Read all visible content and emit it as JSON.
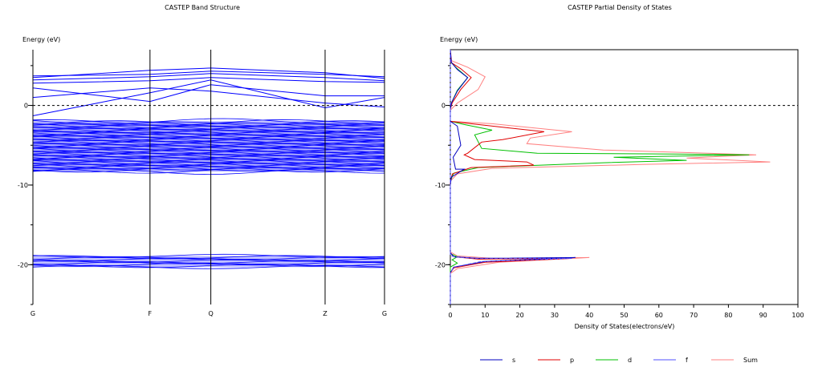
{
  "chart_data": [
    {
      "type": "line",
      "title": "CASTEP Band Structure",
      "ylabel": "Energy (eV)",
      "xlabel": "",
      "ylim": [
        -25,
        7
      ],
      "yticks": [
        0,
        -10,
        -20
      ],
      "kpoints": [
        {
          "label": "G",
          "pos": 0.0
        },
        {
          "label": "F",
          "pos": 0.333
        },
        {
          "label": "Q",
          "pos": 0.506
        },
        {
          "label": "Z",
          "pos": 0.831
        },
        {
          "label": "G",
          "pos": 1.0
        }
      ],
      "fermi_level": 0,
      "line_color": "#0000ff",
      "dense_blocks": [
        {
          "from": -8.3,
          "to": -2.0
        },
        {
          "from": -20.3,
          "to": -18.9
        }
      ],
      "bands": [
        {
          "x": [
            0,
            0.333,
            0.506,
            0.831,
            1.0
          ],
          "y": [
            -1.3,
            1.6,
            3.2,
            -0.3,
            1.0
          ]
        },
        {
          "x": [
            0,
            0.333,
            0.506,
            0.831,
            1.0
          ],
          "y": [
            1.0,
            2.2,
            1.8,
            0.3,
            -0.2
          ]
        },
        {
          "x": [
            0,
            0.333,
            0.506,
            0.831,
            1.0
          ],
          "y": [
            2.2,
            0.5,
            2.6,
            1.2,
            1.2
          ]
        },
        {
          "x": [
            0,
            0.333,
            0.506,
            0.831,
            1.0
          ],
          "y": [
            2.8,
            3.1,
            3.5,
            3.0,
            2.9
          ]
        },
        {
          "x": [
            0,
            0.333,
            0.506,
            0.831,
            1.0
          ],
          "y": [
            3.2,
            3.6,
            4.0,
            3.5,
            3.1
          ]
        },
        {
          "x": [
            0,
            0.333,
            0.506,
            0.831,
            1.0
          ],
          "y": [
            3.5,
            4.4,
            4.7,
            4.1,
            3.4
          ]
        },
        {
          "x": [
            0,
            0.333,
            0.506,
            0.831,
            1.0
          ],
          "y": [
            3.7,
            3.9,
            4.3,
            3.9,
            3.6
          ]
        }
      ]
    },
    {
      "type": "line",
      "title": "CASTEP Partial  Density of States",
      "ylabel": "Energy (eV)",
      "xlabel": "Density of States(electrons/eV)",
      "xlim": [
        0,
        100
      ],
      "ylim": [
        -25,
        7
      ],
      "xticks": [
        0,
        10,
        20,
        30,
        40,
        50,
        60,
        70,
        80,
        90,
        100
      ],
      "yticks": [
        0,
        -10,
        -20
      ],
      "fermi_level": 0,
      "series": [
        {
          "name": "s",
          "color": "#0000c0",
          "points": [
            [
              0,
              7
            ],
            [
              0.3,
              5.4
            ],
            [
              2,
              4.5
            ],
            [
              5,
              3.5
            ],
            [
              2,
              1.8
            ],
            [
              0.3,
              0.3
            ],
            [
              0,
              -0.5
            ],
            [
              0,
              -2.0
            ],
            [
              2,
              -2.6
            ],
            [
              3,
              -5.0
            ],
            [
              0.8,
              -6.5
            ],
            [
              1.5,
              -8
            ],
            [
              4,
              -8.0
            ],
            [
              0.3,
              -9.0
            ],
            [
              0,
              -10
            ],
            [
              0,
              -18.5
            ],
            [
              1,
              -19.0
            ],
            [
              8,
              -19.2
            ],
            [
              36,
              -19.1
            ],
            [
              10,
              -19.6
            ],
            [
              1,
              -20.3
            ],
            [
              0,
              -21.0
            ],
            [
              0,
              -25
            ]
          ]
        },
        {
          "name": "p",
          "color": "#e00000",
          "points": [
            [
              0,
              7
            ],
            [
              0.2,
              5.4
            ],
            [
              3,
              4.6
            ],
            [
              6,
              3.5
            ],
            [
              3,
              2.0
            ],
            [
              0.5,
              0.3
            ],
            [
              0,
              -0.5
            ],
            [
              0,
              -2.0
            ],
            [
              8,
              -2.4
            ],
            [
              27,
              -3.3
            ],
            [
              15,
              -4.3
            ],
            [
              9,
              -4.6
            ],
            [
              5,
              -6.0
            ],
            [
              4,
              -6.2
            ],
            [
              7,
              -6.8
            ],
            [
              22,
              -7.1
            ],
            [
              24,
              -7.5
            ],
            [
              6,
              -7.8
            ],
            [
              0.6,
              -8.6
            ],
            [
              0,
              -9.5
            ],
            [
              0,
              -18.5
            ],
            [
              1,
              -19.0
            ],
            [
              8,
              -19.3
            ],
            [
              35,
              -19.2
            ],
            [
              10,
              -19.7
            ],
            [
              1,
              -20.4
            ],
            [
              0,
              -21.0
            ],
            [
              0,
              -25
            ]
          ]
        },
        {
          "name": "d",
          "color": "#00c000",
          "points": [
            [
              0,
              7
            ],
            [
              0.2,
              5.4
            ],
            [
              2,
              4.6
            ],
            [
              5,
              3.5
            ],
            [
              2,
              1.9
            ],
            [
              0.3,
              0.3
            ],
            [
              0,
              -0.5
            ],
            [
              0,
              -2.0
            ],
            [
              4,
              -2.4
            ],
            [
              12,
              -3.1
            ],
            [
              7,
              -3.7
            ],
            [
              9,
              -5.4
            ],
            [
              25,
              -6.0
            ],
            [
              65,
              -6.1
            ],
            [
              86,
              -6.2
            ],
            [
              47,
              -6.5
            ],
            [
              68,
              -6.9
            ],
            [
              44,
              -7.2
            ],
            [
              8,
              -7.8
            ],
            [
              1,
              -8.5
            ],
            [
              0,
              -9.5
            ],
            [
              0,
              -18.6
            ],
            [
              2,
              -19.0
            ],
            [
              0.5,
              -19.4
            ],
            [
              2,
              -19.8
            ],
            [
              0,
              -20.3
            ],
            [
              0,
              -25
            ]
          ]
        },
        {
          "name": "f",
          "color": "#5050ff",
          "points": [
            [
              0,
              7
            ],
            [
              0,
              -18.8
            ],
            [
              1,
              -19.0
            ],
            [
              7,
              -19.2
            ],
            [
              35,
              -19.2
            ],
            [
              9,
              -19.6
            ],
            [
              1,
              -20.3
            ],
            [
              0,
              -21.0
            ],
            [
              0,
              -25
            ]
          ]
        },
        {
          "name": "Sum",
          "color": "#ff8080",
          "points": [
            [
              0,
              7
            ],
            [
              0.4,
              5.6
            ],
            [
              5,
              4.8
            ],
            [
              10,
              3.6
            ],
            [
              8,
              2.0
            ],
            [
              2,
              0.3
            ],
            [
              0,
              -0.6
            ],
            [
              0,
              -2.0
            ],
            [
              12,
              -2.3
            ],
            [
              35,
              -3.3
            ],
            [
              23,
              -4.1
            ],
            [
              22,
              -4.8
            ],
            [
              44,
              -5.6
            ],
            [
              88,
              -6.2
            ],
            [
              68,
              -6.6
            ],
            [
              92,
              -7.1
            ],
            [
              56,
              -7.4
            ],
            [
              12,
              -7.9
            ],
            [
              2,
              -8.6
            ],
            [
              0,
              -9.5
            ],
            [
              0,
              -18.4
            ],
            [
              2,
              -18.9
            ],
            [
              12,
              -19.2
            ],
            [
              40,
              -19.1
            ],
            [
              14,
              -19.7
            ],
            [
              2,
              -20.5
            ],
            [
              0,
              -21.1
            ],
            [
              0,
              -25
            ]
          ]
        }
      ],
      "legend_position": "bottom"
    }
  ]
}
